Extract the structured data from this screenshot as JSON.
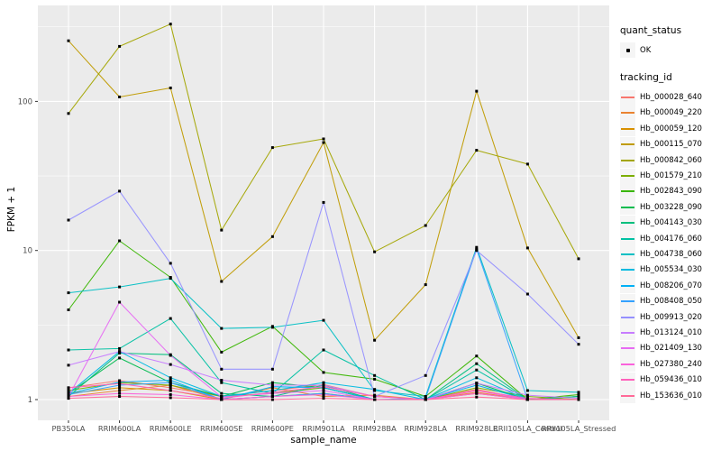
{
  "chart_data": {
    "type": "line",
    "title": "",
    "xlabel": "sample_name",
    "ylabel": "FPKM + 1",
    "y_scale": "log10",
    "y_ticks": [
      1,
      10,
      100
    ],
    "y_tick_labels": [
      "1",
      "10",
      "100"
    ],
    "ylim": [
      0.73,
      440
    ],
    "grid": true,
    "legend_position": "right",
    "point_shape": "black-square",
    "categories": [
      "PB350LA",
      "RRIM600LA",
      "RRIM600LE",
      "RRIM600SE",
      "RRIM600PE",
      "RRIM901LA",
      "RRIM928BA",
      "RRIM928LA",
      "RRIM928LE",
      "RRII105LA_Control",
      "RRII105LA_Stressed"
    ],
    "series": [
      {
        "name": "Hb_000028_640",
        "color": "#F8766D",
        "values": [
          1.2,
          1.34,
          1.2,
          1.05,
          1.15,
          1.26,
          1.05,
          1.0,
          1.17,
          1.0,
          1.0
        ]
      },
      {
        "name": "Hb_000049_220",
        "color": "#EA8331",
        "values": [
          1.05,
          1.15,
          1.25,
          1.0,
          1.2,
          1.05,
          1.07,
          1.0,
          1.12,
          1.0,
          1.0
        ]
      },
      {
        "name": "Hb_000059_120",
        "color": "#D89000",
        "values": [
          1.1,
          1.2,
          1.15,
          1.0,
          1.05,
          1.1,
          1.0,
          1.0,
          1.1,
          1.0,
          1.0
        ]
      },
      {
        "name": "Hb_000115_070",
        "color": "#C09B00",
        "values": [
          255,
          107,
          123,
          6.2,
          12.4,
          53,
          2.5,
          5.9,
          117,
          10.4,
          2.6
        ]
      },
      {
        "name": "Hb_000842_060",
        "color": "#A3A500",
        "values": [
          83,
          234,
          330,
          13.7,
          49,
          56,
          9.8,
          14.7,
          47,
          38,
          8.8
        ]
      },
      {
        "name": "Hb_001579_210",
        "color": "#7CAE00",
        "values": [
          1.15,
          1.3,
          1.25,
          1.05,
          1.1,
          1.2,
          1.0,
          1.0,
          1.2,
          1.05,
          1.0
        ]
      },
      {
        "name": "Hb_002843_090",
        "color": "#39B600",
        "values": [
          4.0,
          11.6,
          6.6,
          2.08,
          3.1,
          1.52,
          1.37,
          1.05,
          1.96,
          1.0,
          1.08
        ]
      },
      {
        "name": "Hb_003228_090",
        "color": "#00BB4E",
        "values": [
          1.1,
          1.9,
          1.3,
          1.05,
          1.3,
          1.2,
          1.0,
          1.0,
          1.29,
          1.0,
          1.05
        ]
      },
      {
        "name": "Hb_004143_030",
        "color": "#00BF7D",
        "values": [
          1.05,
          2.05,
          2.0,
          1.1,
          1.05,
          1.25,
          1.0,
          1.0,
          1.74,
          1.0,
          1.05
        ]
      },
      {
        "name": "Hb_004176_060",
        "color": "#00C1A3",
        "values": [
          2.15,
          2.2,
          3.5,
          1.3,
          1.1,
          2.15,
          1.45,
          1.0,
          1.58,
          1.0,
          1.0
        ]
      },
      {
        "name": "Hb_004738_060",
        "color": "#00BFC4",
        "values": [
          5.2,
          5.7,
          6.5,
          3.0,
          3.05,
          3.4,
          1.15,
          1.05,
          10.5,
          1.15,
          1.12
        ]
      },
      {
        "name": "Hb_005534_030",
        "color": "#00BAE0",
        "values": [
          1.1,
          2.1,
          1.4,
          1.05,
          1.15,
          1.3,
          1.17,
          1.0,
          1.4,
          1.0,
          1.0
        ]
      },
      {
        "name": "Hb_008206_070",
        "color": "#00B0F6",
        "values": [
          1.1,
          1.31,
          1.35,
          1.0,
          1.22,
          1.2,
          1.0,
          1.0,
          1.25,
          1.0,
          1.0
        ]
      },
      {
        "name": "Hb_008408_050",
        "color": "#35A2FF",
        "values": [
          1.08,
          1.25,
          1.3,
          1.0,
          1.05,
          1.1,
          1.0,
          1.02,
          10.2,
          1.0,
          1.0
        ]
      },
      {
        "name": "Hb_009913_020",
        "color": "#9590FF",
        "values": [
          16,
          25,
          8.2,
          1.6,
          1.6,
          21,
          1.05,
          1.45,
          10.0,
          5.1,
          2.35
        ]
      },
      {
        "name": "Hb_013124_010",
        "color": "#C77CFF",
        "values": [
          1.7,
          2.1,
          1.72,
          1.35,
          1.25,
          1.25,
          1.05,
          1.0,
          1.29,
          1.07,
          1.02
        ]
      },
      {
        "name": "Hb_021409_130",
        "color": "#E76BF3",
        "values": [
          1.05,
          4.5,
          1.98,
          1.04,
          1.1,
          1.15,
          1.0,
          1.0,
          1.15,
          1.0,
          1.0
        ]
      },
      {
        "name": "Hb_027380_240",
        "color": "#FA62DB",
        "values": [
          1.05,
          1.1,
          1.08,
          1.0,
          1.05,
          1.08,
          1.0,
          1.0,
          1.1,
          1.0,
          1.0
        ]
      },
      {
        "name": "Hb_059436_010",
        "color": "#FF62BC",
        "values": [
          1.2,
          1.28,
          1.15,
          1.02,
          1.12,
          1.22,
          1.05,
          1.0,
          1.15,
          1.02,
          1.0
        ]
      },
      {
        "name": "Hb_153636_010",
        "color": "#FF6A98",
        "values": [
          1.02,
          1.05,
          1.03,
          1.0,
          1.0,
          1.02,
          1.0,
          1.0,
          1.04,
          1.0,
          1.0
        ]
      }
    ]
  },
  "legend": {
    "quant_status_title": "quant_status",
    "quant_status_value": "OK",
    "tracking_id_title": "tracking_id"
  },
  "style": {
    "panel_bg": "#EBEBEB",
    "grid_color": "#FFFFFF",
    "axis_text_color": "#4D4D4D",
    "axis_title_color": "#000000",
    "point_color": "#000000",
    "legend_key_bg": "#F5F5F5"
  }
}
